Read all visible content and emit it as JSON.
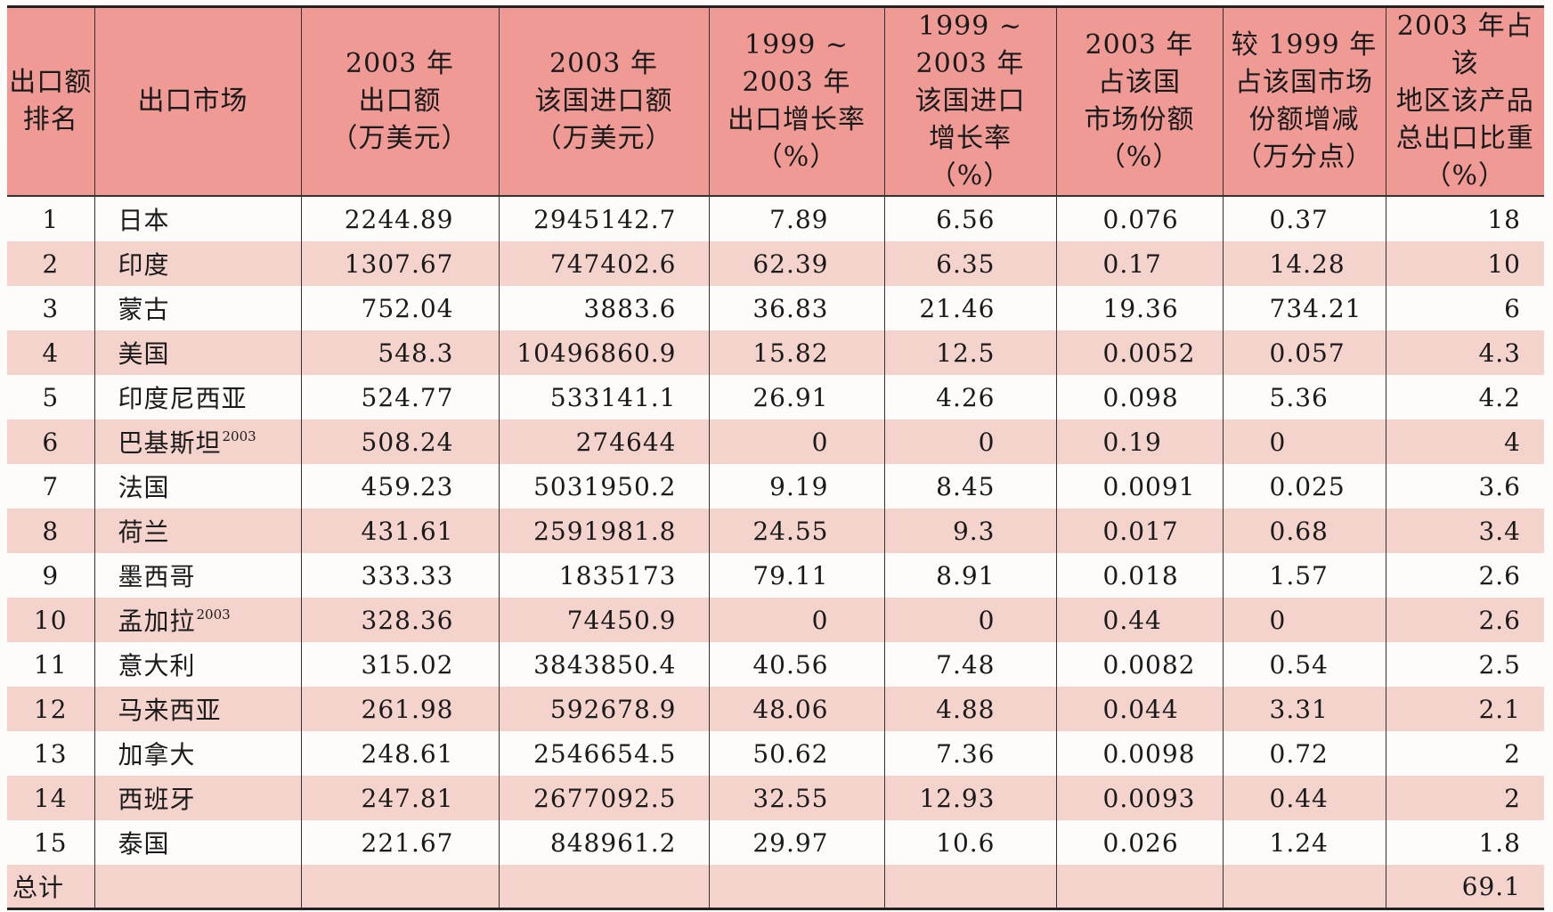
{
  "headers": [
    "出口额\n排名",
    "出口市场",
    "2003 年\n出口额\n（万美元）",
    "2003 年\n该国进口额\n（万美元）",
    "1999 ~ 2003 年\n出口增长率\n（%）",
    "1999 ~ 2003 年\n该国进口\n增长率\n（%）",
    "2003 年\n占该国\n市场份额\n（%）",
    "较 1999 年\n占该国市场\n份额增减\n（万分点）",
    "2003 年占该\n地区该产品\n总出口比重\n（%）"
  ],
  "rows": [
    {
      "rank": "1",
      "market": "日本",
      "note": "",
      "export": "2244.89",
      "import": "2945142.7",
      "export_growth": "7.89",
      "import_growth": "6.56",
      "share": "0.076",
      "share_change": "0.37",
      "weight": "18"
    },
    {
      "rank": "2",
      "market": "印度",
      "note": "",
      "export": "1307.67",
      "import": "747402.6",
      "export_growth": "62.39",
      "import_growth": "6.35",
      "share": "0.17",
      "share_change": "14.28",
      "weight": "10"
    },
    {
      "rank": "3",
      "market": "蒙古",
      "note": "",
      "export": "752.04",
      "import": "3883.6",
      "export_growth": "36.83",
      "import_growth": "21.46",
      "share": "19.36",
      "share_change": "734.21",
      "weight": "6"
    },
    {
      "rank": "4",
      "market": "美国",
      "note": "",
      "export": "548.3",
      "import": "10496860.9",
      "export_growth": "15.82",
      "import_growth": "12.5",
      "share": "0.0052",
      "share_change": "0.057",
      "weight": "4.3"
    },
    {
      "rank": "5",
      "market": "印度尼西亚",
      "note": "",
      "export": "524.77",
      "import": "533141.1",
      "export_growth": "26.91",
      "import_growth": "4.26",
      "share": "0.098",
      "share_change": "5.36",
      "weight": "4.2"
    },
    {
      "rank": "6",
      "market": "巴基斯坦",
      "note": "2003",
      "export": "508.24",
      "import": "274644",
      "export_growth": "0",
      "import_growth": "0",
      "share": "0.19",
      "share_change": "0",
      "weight": "4"
    },
    {
      "rank": "7",
      "market": "法国",
      "note": "",
      "export": "459.23",
      "import": "5031950.2",
      "export_growth": "9.19",
      "import_growth": "8.45",
      "share": "0.0091",
      "share_change": "0.025",
      "weight": "3.6"
    },
    {
      "rank": "8",
      "market": "荷兰",
      "note": "",
      "export": "431.61",
      "import": "2591981.8",
      "export_growth": "24.55",
      "import_growth": "9.3",
      "share": "0.017",
      "share_change": "0.68",
      "weight": "3.4"
    },
    {
      "rank": "9",
      "market": "墨西哥",
      "note": "",
      "export": "333.33",
      "import": "1835173",
      "export_growth": "79.11",
      "import_growth": "8.91",
      "share": "0.018",
      "share_change": "1.57",
      "weight": "2.6"
    },
    {
      "rank": "10",
      "market": "孟加拉",
      "note": "2003",
      "export": "328.36",
      "import": "74450.9",
      "export_growth": "0",
      "import_growth": "0",
      "share": "0.44",
      "share_change": "0",
      "weight": "2.6"
    },
    {
      "rank": "11",
      "market": "意大利",
      "note": "",
      "export": "315.02",
      "import": "3843850.4",
      "export_growth": "40.56",
      "import_growth": "7.48",
      "share": "0.0082",
      "share_change": "0.54",
      "weight": "2.5"
    },
    {
      "rank": "12",
      "market": "马来西亚",
      "note": "",
      "export": "261.98",
      "import": "592678.9",
      "export_growth": "48.06",
      "import_growth": "4.88",
      "share": "0.044",
      "share_change": "3.31",
      "weight": "2.1"
    },
    {
      "rank": "13",
      "market": "加拿大",
      "note": "",
      "export": "248.61",
      "import": "2546654.5",
      "export_growth": "50.62",
      "import_growth": "7.36",
      "share": "0.0098",
      "share_change": "0.72",
      "weight": "2"
    },
    {
      "rank": "14",
      "market": "西班牙",
      "note": "",
      "export": "247.81",
      "import": "2677092.5",
      "export_growth": "32.55",
      "import_growth": "12.93",
      "share": "0.0093",
      "share_change": "0.44",
      "weight": "2"
    },
    {
      "rank": "15",
      "market": "泰国",
      "note": "",
      "export": "221.67",
      "import": "848961.2",
      "export_growth": "29.97",
      "import_growth": "10.6",
      "share": "0.026",
      "share_change": "1.24",
      "weight": "1.8"
    }
  ],
  "total": {
    "label": "总计",
    "weight": "69.1"
  },
  "colors": {
    "header_bg": "#ef9a94",
    "stripe_bg": "#f5d3cd",
    "rule": "#222222"
  }
}
